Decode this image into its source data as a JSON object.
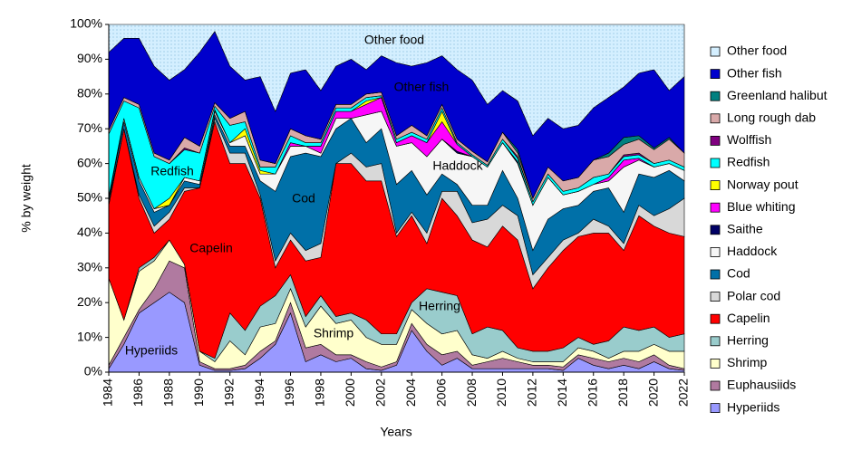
{
  "chart_data": {
    "type": "stacked_area",
    "x_label": "Years",
    "y_label": "% by weight",
    "x": [
      1984,
      1985,
      1986,
      1987,
      1988,
      1989,
      1990,
      1991,
      1992,
      1993,
      1994,
      1995,
      1996,
      1997,
      1998,
      1999,
      2000,
      2001,
      2002,
      2003,
      2004,
      2005,
      2006,
      2007,
      2008,
      2009,
      2010,
      2011,
      2012,
      2013,
      2014,
      2015,
      2016,
      2017,
      2018,
      2019,
      2020,
      2021,
      2022
    ],
    "xlim": [
      1984,
      2022
    ],
    "xticks": [
      1984,
      1986,
      1988,
      1990,
      1992,
      1994,
      1996,
      1998,
      2000,
      2002,
      2004,
      2006,
      2008,
      2010,
      2012,
      2014,
      2016,
      2018,
      2020,
      2022
    ],
    "ylim": [
      0,
      100
    ],
    "yticks": [
      {
        "value": 0,
        "label": "0%"
      },
      {
        "value": 10,
        "label": "10%"
      },
      {
        "value": 20,
        "label": "20%"
      },
      {
        "value": 30,
        "label": "30%"
      },
      {
        "value": 40,
        "label": "40%"
      },
      {
        "value": 50,
        "label": "50%"
      },
      {
        "value": 60,
        "label": "60%"
      },
      {
        "value": 70,
        "label": "70%"
      },
      {
        "value": 80,
        "label": "80%"
      },
      {
        "value": 90,
        "label": "90%"
      },
      {
        "value": 100,
        "label": "100%"
      }
    ],
    "annotations": [
      "Other food",
      "Other fish",
      "Redfish",
      "Haddock",
      "Cod",
      "Capelin",
      "Herring",
      "Shrimp",
      "Hyperiids"
    ],
    "series": [
      {
        "name": "Hyperiids",
        "color": "#9999ff",
        "values": [
          1,
          8,
          17,
          20,
          23,
          20,
          2,
          0.5,
          0.5,
          1,
          4,
          8,
          17,
          3,
          5,
          3,
          4,
          1,
          0.5,
          2,
          12,
          6,
          2,
          4,
          1,
          1,
          1,
          1,
          1,
          1,
          0.5,
          4,
          2,
          1,
          2,
          1,
          3,
          1,
          0.5
        ]
      },
      {
        "name": "Euphausiids",
        "color": "#b07aa0",
        "values": [
          1,
          2,
          1,
          4,
          9,
          10,
          1,
          0.5,
          0.5,
          1,
          2,
          1,
          3,
          4,
          3,
          2,
          1,
          2,
          1,
          1,
          2,
          2,
          3,
          2,
          1,
          2,
          3,
          2,
          1,
          1,
          1,
          1,
          2,
          2,
          2,
          2,
          2,
          1,
          0.5
        ]
      },
      {
        "name": "Shrimp",
        "color": "#ffffcc",
        "values": [
          25,
          5,
          11,
          8,
          6,
          1,
          3,
          2,
          8,
          3,
          7,
          5,
          4,
          6,
          11,
          9,
          10,
          7,
          6.5,
          5,
          4,
          6,
          6,
          6,
          3,
          1,
          2,
          1,
          1,
          1,
          1.5,
          2,
          2,
          1,
          2,
          3,
          3,
          4,
          5
        ]
      },
      {
        "name": "Herring",
        "color": "#99cccc",
        "values": [
          0,
          0,
          1,
          1,
          0,
          0,
          0,
          1,
          8,
          7,
          6,
          8,
          4,
          3,
          3,
          2,
          2,
          5,
          3,
          3,
          2,
          10,
          12,
          10,
          6,
          9,
          6,
          3,
          3,
          3,
          4,
          3,
          2,
          5,
          7,
          6,
          5,
          4,
          5
        ]
      },
      {
        "name": "Capelin",
        "color": "#ff0000",
        "values": [
          21,
          55,
          20,
          7,
          6,
          21,
          47,
          68,
          43,
          48,
          31,
          8,
          10,
          16,
          11,
          44,
          43,
          40,
          44,
          28,
          25,
          13,
          27,
          23,
          27,
          23,
          30,
          31,
          18,
          24,
          28,
          29,
          32,
          31,
          22,
          33,
          29,
          30,
          28
        ]
      },
      {
        "name": "Polar cod",
        "color": "#d8d8d8",
        "values": [
          1,
          0,
          1,
          2,
          2,
          1,
          0,
          1,
          3,
          3,
          1,
          2,
          2,
          3,
          4,
          0,
          3,
          4,
          5,
          1,
          1,
          3,
          2,
          7,
          5,
          8,
          6,
          7,
          4,
          3,
          3,
          1,
          4,
          2,
          2,
          3,
          3,
          7,
          11
        ]
      },
      {
        "name": "Cod",
        "color": "#0070a8",
        "values": [
          1,
          2,
          4,
          4,
          2,
          2,
          1,
          1,
          2,
          2,
          4,
          20,
          22,
          28,
          25,
          10,
          10,
          7,
          10,
          14,
          12,
          11,
          5,
          2,
          5,
          4,
          10,
          5,
          7,
          11,
          9,
          8,
          8,
          11,
          9,
          9,
          11,
          11,
          5
        ]
      },
      {
        "name": "Haddock",
        "color": "#f6f6f6",
        "values": [
          0,
          1,
          1,
          1,
          0,
          1,
          1,
          1,
          1,
          3,
          2,
          5,
          3,
          2,
          1,
          3,
          0,
          8,
          5,
          11,
          8,
          11,
          10,
          9,
          14,
          11,
          8,
          10,
          13,
          12,
          4,
          4,
          2,
          2,
          13,
          4,
          3,
          2,
          3
        ]
      },
      {
        "name": "Saithe",
        "color": "#000066",
        "values": [
          0.5,
          0,
          0,
          0,
          0,
          0,
          0,
          0.5,
          0,
          0,
          0,
          0,
          0,
          0,
          0,
          0,
          0,
          0,
          0,
          0,
          0,
          0,
          0,
          0.5,
          0,
          0,
          0,
          0.5,
          0,
          0,
          0,
          0,
          0,
          0,
          0,
          0,
          0,
          0,
          0
        ]
      },
      {
        "name": "Blue whiting",
        "color": "#ff00ff",
        "values": [
          0,
          0,
          0,
          0,
          0,
          0,
          0,
          0,
          0,
          0,
          0,
          0,
          1,
          0,
          2,
          2,
          2,
          3,
          4,
          1,
          2,
          4,
          5,
          2,
          0,
          0,
          0,
          0,
          0,
          0,
          0,
          0,
          0,
          1,
          2,
          0.5,
          0,
          0,
          0
        ]
      },
      {
        "name": "Norway pout",
        "color": "#ffff00",
        "values": [
          0,
          0,
          0,
          0,
          2,
          0,
          0,
          0,
          0,
          2,
          1,
          0,
          0,
          0,
          0,
          0,
          0,
          1,
          0,
          0,
          0,
          0,
          3,
          0,
          0,
          0,
          0,
          0,
          0,
          0,
          0,
          0,
          0,
          0,
          0,
          0,
          0,
          0,
          0
        ]
      },
      {
        "name": "Redfish",
        "color": "#00ffff",
        "values": [
          18,
          5,
          20,
          15,
          10,
          8,
          8,
          1,
          5,
          2,
          1,
          2,
          2,
          1,
          1,
          1,
          1,
          1,
          0.5,
          1,
          1,
          1,
          1,
          0.5,
          0.5,
          0.5,
          1,
          1,
          1,
          1,
          1,
          1,
          2,
          1,
          1,
          1,
          1,
          1,
          1
        ]
      },
      {
        "name": "Wolffish",
        "color": "#800080",
        "values": [
          0,
          0,
          0,
          0,
          0,
          0.5,
          0,
          0,
          0,
          0,
          0,
          0,
          0,
          0,
          0,
          0,
          0,
          0,
          0,
          0,
          0,
          0,
          0,
          0,
          0,
          0,
          0,
          0.5,
          0,
          0,
          0,
          0,
          0,
          0,
          0.5,
          0.5,
          0,
          0,
          0
        ]
      },
      {
        "name": "Long rough dab",
        "color": "#d9a9a9",
        "values": [
          1,
          1,
          1,
          1,
          1,
          3,
          2,
          1,
          2,
          3,
          2,
          1,
          2,
          2,
          1,
          1,
          1,
          1,
          1,
          1,
          2,
          1,
          1,
          1,
          1,
          1,
          2,
          1,
          1,
          2,
          3,
          3,
          5,
          5,
          3,
          4,
          4,
          6,
          4
        ]
      },
      {
        "name": "Greenland halibut",
        "color": "#008080",
        "values": [
          0,
          0,
          0,
          0,
          0,
          0,
          0,
          0,
          0,
          0,
          0,
          0,
          0,
          0,
          0,
          0,
          0,
          0,
          0,
          0,
          0,
          0,
          0,
          0,
          0,
          0,
          0,
          1,
          0,
          0,
          0,
          0,
          0,
          1,
          2,
          1,
          0.5,
          0.5,
          0
        ]
      },
      {
        "name": "Other fish",
        "color": "#0000cc",
        "values": [
          22.5,
          17,
          19,
          25,
          23,
          19.5,
          27,
          20.5,
          15,
          9,
          24,
          15,
          16,
          19,
          14,
          11,
          13,
          7,
          10.5,
          21,
          17,
          21,
          14,
          20,
          20.5,
          16.5,
          12,
          14,
          18,
          14,
          15,
          15,
          15,
          16,
          14.5,
          18,
          22.5,
          13.5,
          22
        ]
      },
      {
        "name": "Other food",
        "color": "#d4efff",
        "values": [
          8,
          4,
          4,
          12,
          16,
          13,
          8,
          2,
          12,
          16,
          15,
          25,
          14,
          13,
          19,
          12,
          10,
          13,
          9,
          11,
          12,
          11,
          9,
          13,
          16,
          23,
          19,
          22,
          32,
          27,
          30,
          29,
          24,
          21,
          18,
          14,
          13,
          19,
          15
        ]
      }
    ]
  }
}
